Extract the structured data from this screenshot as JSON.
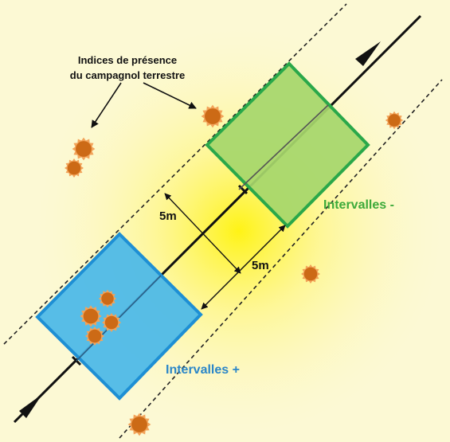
{
  "annotation": {
    "line1": "Indices de présence",
    "line2": "du campagnol terrestre"
  },
  "dimensions": {
    "along_transect": "5m",
    "across_transect": "5m"
  },
  "zones": {
    "negative_label": "Intervalles -",
    "positive_label": "Intervalles +"
  },
  "colors": {
    "background": "#fbf8cf",
    "glow": "#ffee55",
    "negative_fill": "#a6d66c",
    "negative_stroke": "#2aa84a",
    "negative_text": "#3daa3a",
    "positive_fill": "#4ab8e8",
    "positive_stroke": "#1e8fd4",
    "positive_text": "#2b86c8",
    "vole_sign": "#d2711c"
  }
}
